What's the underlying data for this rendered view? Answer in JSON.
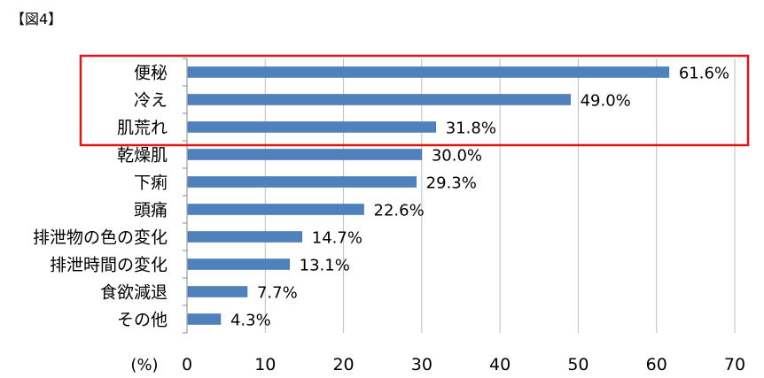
{
  "figure_label": "【図4】",
  "chart_data": {
    "type": "bar",
    "orientation": "horizontal",
    "categories": [
      "便秘",
      "冷え",
      "肌荒れ",
      "乾燥肌",
      "下痢",
      "頭痛",
      "排泄物の色の変化",
      "排泄時間の変化",
      "食欲減退",
      "その他"
    ],
    "values": [
      61.6,
      49.0,
      31.8,
      30.0,
      29.3,
      22.6,
      14.7,
      13.1,
      7.7,
      4.3
    ],
    "value_labels": [
      "61.6%",
      "49.0%",
      "31.8%",
      "30.0%",
      "29.3%",
      "22.6%",
      "14.7%",
      "13.1%",
      "7.7%",
      "4.3%"
    ],
    "xlim": [
      0,
      70
    ],
    "xticks": [
      "0",
      "10",
      "20",
      "30",
      "40",
      "50",
      "60",
      "70"
    ],
    "xunit": "(%)",
    "grid": "vertical",
    "highlight_count": 3,
    "colors": {
      "bar": "#4f81bd",
      "highlight_box": "#e0141a",
      "grid": "#bfbfbf"
    }
  }
}
